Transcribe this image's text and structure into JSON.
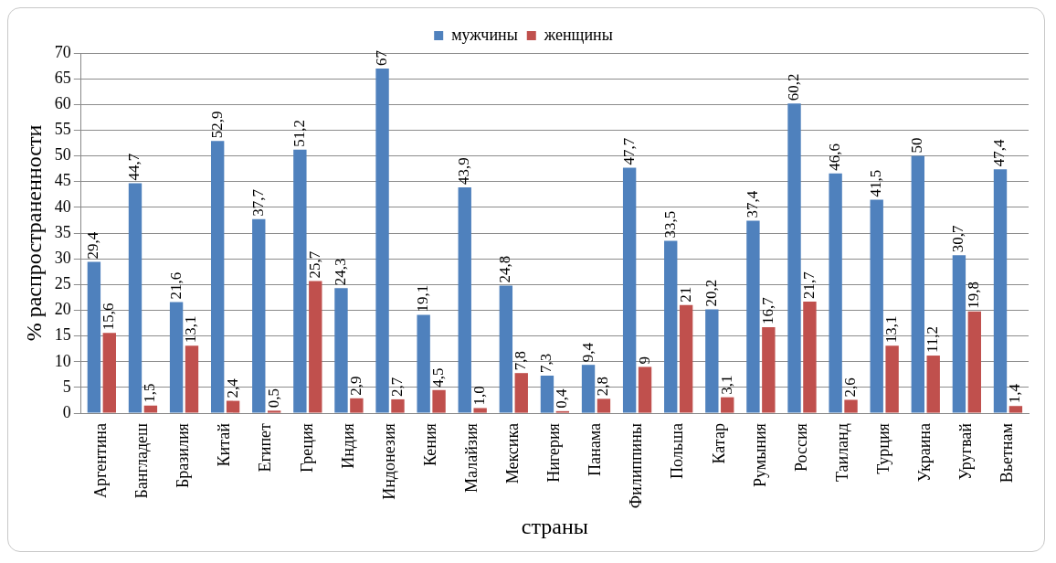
{
  "chart_data": {
    "type": "bar",
    "xlabel": "страны",
    "ylabel": "% распространенности",
    "categories": [
      "Аргентина",
      "Бангладеш",
      "Бразилия",
      "Китай",
      "Египет",
      "Греция",
      "Индия",
      "Индонезия",
      "Кения",
      "Малайзия",
      "Мексика",
      "Нигерия",
      "Панама",
      "Филиппины",
      "Польша",
      "Катар",
      "Румыния",
      "Россия",
      "Таиланд",
      "Турция",
      "Украина",
      "Уругвай",
      "Вьетнам"
    ],
    "series": [
      {
        "name": "мужчины",
        "color": "#4f81bd",
        "values": [
          29.4,
          44.7,
          21.6,
          52.9,
          37.7,
          51.2,
          24.3,
          67,
          19.1,
          43.9,
          24.8,
          7.3,
          9.4,
          47.7,
          33.5,
          20.2,
          37.4,
          60.2,
          46.6,
          41.5,
          50,
          30.7,
          47.4
        ],
        "value_labels": [
          "29,4",
          "44,7",
          "21,6",
          "52,9",
          "37,7",
          "51,2",
          "24,3",
          "67",
          "19,1",
          "43,9",
          "24,8",
          "7,3",
          "9,4",
          "47,7",
          "33,5",
          "20,2",
          "37,4",
          "60,2",
          "46,6",
          "41,5",
          "50",
          "30,7",
          "47,4"
        ]
      },
      {
        "name": "женщины",
        "color": "#c0504d",
        "values": [
          15.6,
          1.5,
          13.1,
          2.4,
          0.5,
          25.7,
          2.9,
          2.7,
          4.5,
          1.0,
          7.8,
          0.4,
          2.8,
          9,
          21,
          3.1,
          16.7,
          21.7,
          2.6,
          13.1,
          11.2,
          19.8,
          1.4
        ],
        "value_labels": [
          "15,6",
          "1,5",
          "13,1",
          "2,4",
          "0,5",
          "25,7",
          "2,9",
          "2,7",
          "4,5",
          "1,0",
          "7,8",
          "0,4",
          "2,8",
          "9",
          "21",
          "3,1",
          "16,7",
          "21,7",
          "2,6",
          "13,1",
          "11,2",
          "19,8",
          "1,4"
        ]
      }
    ],
    "ylim": [
      0,
      70
    ],
    "yticks": [
      0,
      5,
      10,
      15,
      20,
      25,
      30,
      35,
      40,
      45,
      50,
      55,
      60,
      65,
      70
    ],
    "grid": "y",
    "legend": "top"
  }
}
